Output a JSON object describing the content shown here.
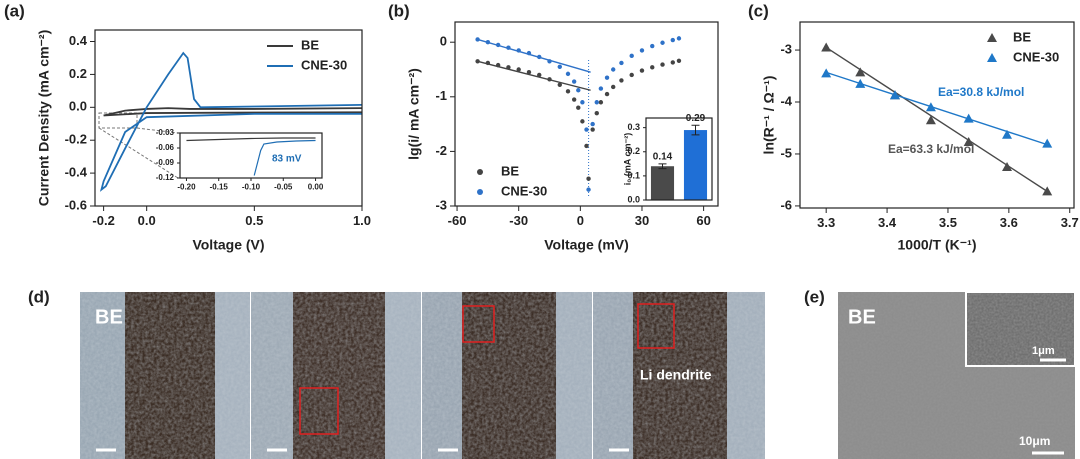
{
  "panel_labels": [
    "(a)",
    "(b)",
    "(c)",
    "(d)",
    "(e)"
  ],
  "chart_data": [
    {
      "type": "line",
      "xlabel": "Voltage (V)",
      "ylabel": "Current Density (mA cm⁻²)",
      "xlim": [
        -0.24,
        1.0
      ],
      "ylim": [
        -0.6,
        0.47
      ],
      "xticks": [
        -0.2,
        {
          "value": 0,
          "label": "0.0"
        },
        0.5,
        {
          "value": 1,
          "label": "1.0"
        }
      ],
      "yticks": [
        0.4,
        0.2,
        {
          "value": 0,
          "label": "0.0"
        },
        -0.2,
        -0.4,
        -0.6
      ],
      "legend": "upper right",
      "series": [
        {
          "name": "BE",
          "color": "#3a3a3a",
          "x": [
            1.0,
            0.5,
            0.0,
            -0.2,
            -0.1,
            0.0,
            0.1,
            0.2,
            0.5,
            1.0
          ],
          "values": [
            -0.03,
            -0.032,
            -0.035,
            -0.05,
            -0.02,
            -0.01,
            -0.005,
            -0.01,
            -0.01,
            -0.005
          ]
        },
        {
          "name": "CNE-30",
          "color": "#1f6eb4",
          "x": [
            1.0,
            0.5,
            0.0,
            -0.1,
            -0.15,
            -0.2,
            -0.21,
            -0.19,
            -0.1,
            0.0,
            0.1,
            0.17,
            0.19,
            0.22,
            0.25,
            0.5,
            1.0
          ],
          "values": [
            -0.04,
            -0.04,
            -0.06,
            -0.15,
            -0.3,
            -0.45,
            -0.5,
            -0.48,
            -0.25,
            0.0,
            0.2,
            0.33,
            0.3,
            0.05,
            0.0,
            0.005,
            0.015
          ]
        }
      ]
    },
    {
      "type": "line",
      "xlim": [
        -0.21,
        0.01
      ],
      "ylim": [
        -0.12,
        -0.03
      ],
      "xticks": [
        {
          "value": -0.2,
          "label": "-0.20"
        },
        -0.15,
        {
          "value": -0.1,
          "label": "-0.10"
        },
        -0.05,
        {
          "value": 0,
          "label": "0.00"
        }
      ],
      "yticks": [
        -0.03,
        -0.06,
        -0.09,
        -0.12
      ],
      "annotations": [
        {
          "text": "83 mV",
          "color": "#1f6eb4"
        }
      ],
      "series": [
        {
          "color": "#3a3a3a",
          "x": [
            -0.2,
            -0.15,
            -0.1,
            -0.05,
            0.0
          ],
          "values": [
            -0.045,
            -0.043,
            -0.041,
            -0.04,
            -0.04
          ]
        },
        {
          "color": "#1f6eb4",
          "x": [
            -0.095,
            -0.09,
            -0.085,
            -0.08,
            -0.06,
            -0.03,
            0.0
          ],
          "values": [
            -0.115,
            -0.09,
            -0.065,
            -0.052,
            -0.048,
            -0.046,
            -0.045
          ]
        }
      ]
    },
    {
      "type": "scatter",
      "xlabel": "Voltage (mV)",
      "ylabel": "lg(i/ mA cm⁻²)",
      "xlim": [
        -61,
        67
      ],
      "ylim": [
        -3,
        0.37
      ],
      "xticks": [
        -60,
        -30,
        0,
        30,
        60
      ],
      "yticks": [
        0,
        -1,
        -2,
        -3
      ],
      "legend": "lower left",
      "marker": "circle",
      "x": [
        -50,
        -45,
        -40,
        -35,
        -30,
        -25,
        -20,
        -15,
        -10,
        -6,
        -3,
        -1,
        1,
        3,
        4,
        6,
        8,
        10,
        13,
        16,
        20,
        25,
        30,
        35,
        40,
        45,
        48
      ],
      "series": [
        {
          "name": "BE",
          "color": "#444444",
          "values": [
            -0.35,
            -0.38,
            -0.42,
            -0.46,
            -0.5,
            -0.55,
            -0.6,
            -0.68,
            -0.78,
            -0.9,
            -1.05,
            -1.2,
            -1.45,
            -1.9,
            -2.5,
            -1.6,
            -1.3,
            -1.1,
            -0.95,
            -0.82,
            -0.7,
            -0.6,
            -0.52,
            -0.46,
            -0.41,
            -0.37,
            -0.34
          ]
        },
        {
          "name": "CNE-30",
          "color": "#2f72c8",
          "values": [
            0.05,
            0.0,
            -0.05,
            -0.1,
            -0.15,
            -0.2,
            -0.27,
            -0.35,
            -0.45,
            -0.58,
            -0.72,
            -0.88,
            -1.1,
            -1.6,
            -2.7,
            -1.5,
            -1.1,
            -0.85,
            -0.65,
            -0.5,
            -0.38,
            -0.25,
            -0.15,
            -0.07,
            -0.01,
            0.04,
            0.07
          ]
        }
      ],
      "fits": [
        {
          "color": "#444444",
          "x": [
            -50,
            5
          ],
          "values": [
            -0.35,
            -0.88
          ]
        },
        {
          "color": "#2f72c8",
          "x": [
            -50,
            5
          ],
          "values": [
            0.05,
            -0.55
          ]
        }
      ]
    },
    {
      "type": "bar",
      "ylabel": "i₀ (mA cm⁻²)",
      "ylim": [
        0,
        0.34
      ],
      "yticks": [
        {
          "value": 0,
          "label": "0.0"
        },
        0.1,
        0.2,
        0.3
      ],
      "categories": [
        null,
        null
      ],
      "values": [
        0.14,
        0.29
      ],
      "errors": [
        0.01,
        0.02
      ],
      "colors": [
        "#4a4a4a",
        "#1f6fd6"
      ]
    },
    {
      "type": "scatter",
      "xlabel": "1000/T (K⁻¹)",
      "ylabel": "ln(R⁻¹ / Ω⁻¹)",
      "xlim": [
        3.257,
        3.707
      ],
      "ylim": [
        -6.04,
        -2.46
      ],
      "xticks": [
        3.3,
        3.4,
        3.5,
        3.6,
        3.7
      ],
      "yticks": [
        -3,
        -4,
        -5,
        -6
      ],
      "legend": "upper right",
      "marker": "triangle",
      "x": [
        3.3,
        3.356,
        3.413,
        3.472,
        3.534,
        3.597,
        3.663
      ],
      "series": [
        {
          "name": "BE",
          "color": "#4a4a4a",
          "values": [
            -2.95,
            -3.43,
            -3.87,
            -4.35,
            -4.77,
            -5.25,
            -5.72
          ]
        },
        {
          "name": "CNE-30",
          "color": "#1f78c8",
          "values": [
            -3.45,
            -3.65,
            -3.87,
            -4.1,
            -4.32,
            -4.63,
            -4.8
          ]
        }
      ],
      "fits": [
        {
          "color": "#4a4a4a",
          "x": [
            3.3,
            3.663
          ],
          "values": [
            -2.95,
            -5.72
          ]
        },
        {
          "color": "#1f78c8",
          "x": [
            3.3,
            3.663
          ],
          "values": [
            -3.43,
            -4.82
          ]
        }
      ],
      "annotations": [
        {
          "text": "Ea=30.8 kJ/mol",
          "color": "#1f78c8"
        },
        {
          "text": "Ea=63.3 kJ/mol",
          "color": "#555555"
        }
      ]
    }
  ],
  "images": {
    "d": {
      "label": "BE",
      "annotation": "Li dendrite"
    },
    "e": {
      "label": "BE",
      "inset_scale": "1μm",
      "scale": "10μm"
    }
  }
}
